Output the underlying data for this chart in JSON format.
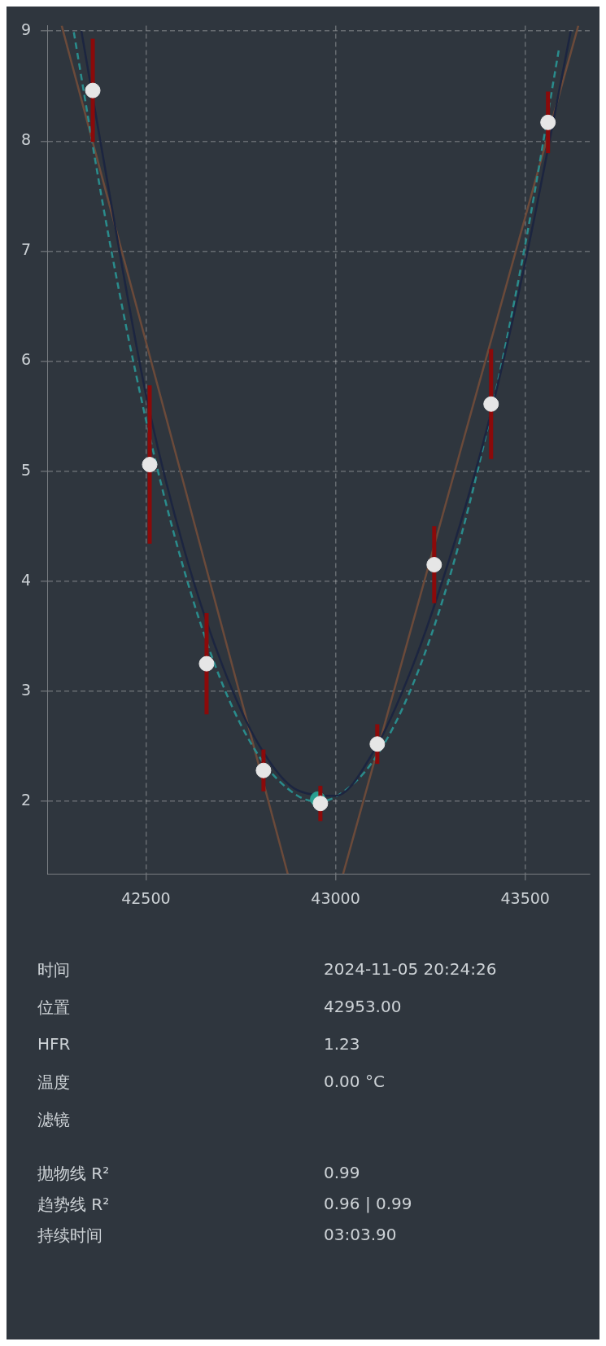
{
  "chart_data": {
    "type": "scatter",
    "xlim": [
      42240,
      43670
    ],
    "ylim": [
      1.34,
      9.05
    ],
    "xticks": [
      42500,
      43000,
      43500
    ],
    "yticks": [
      2,
      3,
      4,
      5,
      6,
      7,
      8,
      9
    ],
    "grid": true,
    "legend": false,
    "series": [
      {
        "type": "scatter",
        "marker": "circle",
        "color": "#e6e6e6",
        "x": [
          42360,
          42510,
          42660,
          42810,
          42960,
          43110,
          43260,
          43410,
          43560
        ],
        "values": [
          8.46,
          5.06,
          3.25,
          2.28,
          1.98,
          2.52,
          4.15,
          5.61,
          8.17
        ],
        "errors": [
          0.47,
          0.72,
          0.46,
          0.19,
          0.16,
          0.18,
          0.35,
          0.5,
          0.28
        ]
      },
      {
        "type": "scatter",
        "marker": "circle",
        "color": "#2a9d8f",
        "x": [
          42953
        ],
        "values": [
          2.02
        ]
      },
      {
        "type": "line",
        "line_style": "solid",
        "color": "#1c2540",
        "x": [
          42330,
          42400,
          42500,
          42600,
          42700,
          42800,
          42900,
          43000,
          43100,
          43200,
          43300,
          43400,
          43500,
          43620
        ],
        "values": [
          9.0,
          7.6,
          5.7,
          4.3,
          3.25,
          2.5,
          2.1,
          2.05,
          2.45,
          3.2,
          4.2,
          5.4,
          6.9,
          9.0
        ]
      },
      {
        "type": "line",
        "line_style": "dashed",
        "color": "#2a8c8c",
        "x": [
          42310,
          42400,
          42500,
          42600,
          42700,
          42800,
          42900,
          42953,
          43000,
          43100,
          43200,
          43300,
          43400,
          43500,
          43590
        ],
        "values": [
          8.99,
          7.17,
          5.47,
          4.11,
          3.08,
          2.4,
          2.05,
          2.0,
          2.04,
          2.37,
          3.03,
          4.03,
          5.38,
          7.06,
          8.86
        ]
      },
      {
        "type": "line",
        "line_style": "solid",
        "color": "#6b4a3a",
        "x": [
          42278,
          42874
        ],
        "values": [
          9.05,
          1.34
        ]
      },
      {
        "type": "line",
        "line_style": "solid",
        "color": "#6b4a3a",
        "x": [
          43020,
          43640
        ],
        "values": [
          1.34,
          9.05
        ]
      }
    ],
    "annotations": [
      "时间",
      "2024-11-05 20:24:26",
      "位置",
      "42953.00",
      "HFR",
      "1.23",
      "温度",
      "0.00 °C",
      "滤镜",
      null,
      "抛物线 R²",
      "0.99",
      "趋势线 R²",
      "0.96 | 0.99",
      "持续时间",
      "03:03.90"
    ]
  }
}
